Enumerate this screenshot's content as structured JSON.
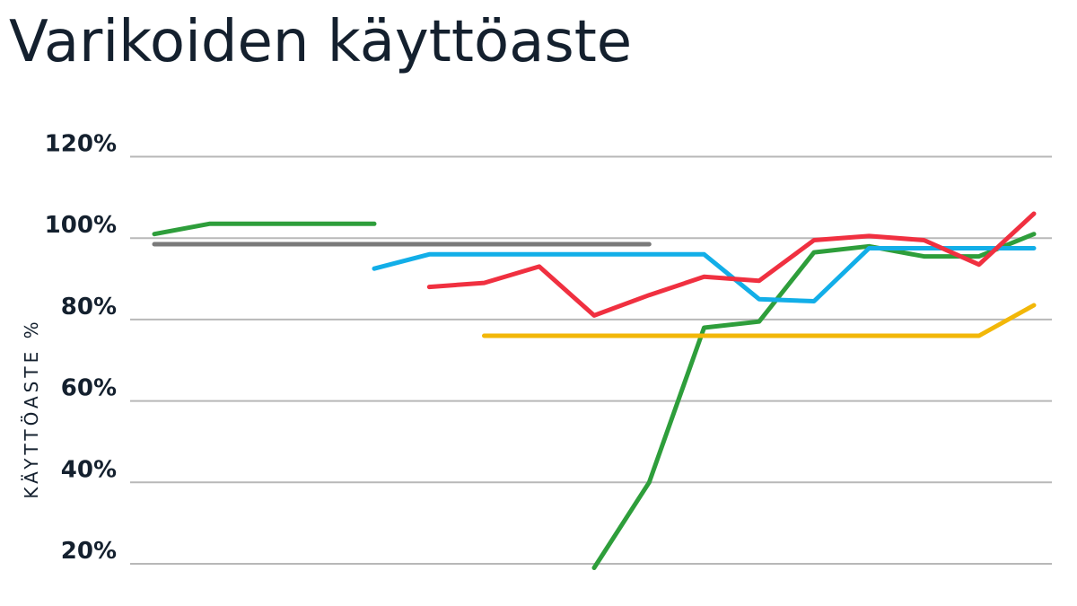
{
  "chart_data": {
    "type": "line",
    "title": "Varikoiden käyttöaste",
    "ylabel": "KÄYTTÖASTE  %",
    "xlabel": "",
    "ylim": [
      15,
      120
    ],
    "yticks": [
      20,
      40,
      60,
      80,
      100,
      120
    ],
    "ytick_labels": [
      "20%",
      "40%",
      "60%",
      "80%",
      "100%",
      "120%"
    ],
    "grid": true,
    "legend": "none",
    "x": [
      1,
      2,
      3,
      4,
      5,
      6,
      7,
      8,
      9,
      10,
      11,
      12,
      13,
      14,
      15,
      16,
      17,
      18
    ],
    "series": [
      {
        "color": "#2e9e3b",
        "values": [
          101,
          103.5,
          103.5,
          103.5,
          103.5,
          null,
          null,
          null,
          19,
          40,
          78,
          79.5,
          96.5,
          98,
          95.5,
          95.5,
          101,
          null
        ],
        "segments": [
          [
            1,
            101
          ],
          [
            2,
            103.5
          ],
          [
            5,
            103.5
          ]
        ],
        "segments2": [
          [
            9,
            19
          ],
          [
            10,
            40
          ],
          [
            11,
            78
          ],
          [
            12,
            79.5
          ],
          [
            13,
            96.5
          ],
          [
            14,
            98
          ],
          [
            15,
            95.5
          ],
          [
            16,
            95.5
          ],
          [
            17,
            101
          ]
        ]
      },
      {
        "color": "#7a7a7a",
        "values": [
          98.5,
          98.5,
          98.5,
          98.5,
          98.5,
          98.5,
          98.5,
          98.5,
          98.5,
          98.5,
          null,
          null,
          null,
          null,
          null,
          null,
          null,
          null
        ]
      },
      {
        "color": "#12aee8",
        "values": [
          null,
          null,
          null,
          null,
          92.5,
          96,
          96,
          96,
          96,
          96,
          96,
          85,
          84.5,
          97.5,
          97.5,
          97.5,
          97.5,
          null
        ]
      },
      {
        "color": "#f03040",
        "values": [
          null,
          null,
          null,
          null,
          null,
          88,
          89,
          93,
          81,
          86,
          90.5,
          89.5,
          99.5,
          100.5,
          99.5,
          93.5,
          106,
          null
        ]
      },
      {
        "color": "#f2b708",
        "values": [
          null,
          null,
          null,
          null,
          null,
          null,
          76,
          76,
          76,
          76,
          76,
          76,
          76,
          76,
          76,
          76,
          83.5,
          null
        ]
      }
    ]
  }
}
